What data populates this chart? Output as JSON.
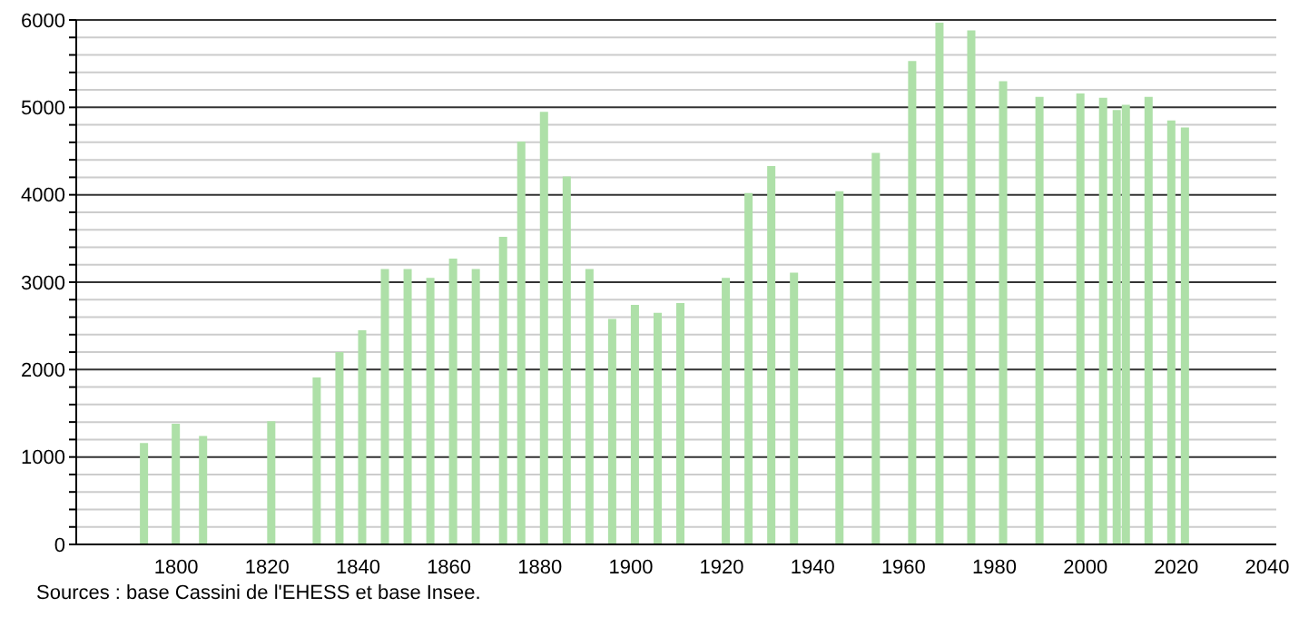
{
  "chart_data": {
    "type": "bar",
    "x": [
      1793,
      1800,
      1806,
      1821,
      1831,
      1836,
      1841,
      1846,
      1851,
      1856,
      1861,
      1866,
      1872,
      1876,
      1881,
      1886,
      1891,
      1896,
      1901,
      1906,
      1911,
      1921,
      1926,
      1931,
      1936,
      1946,
      1954,
      1962,
      1968,
      1975,
      1982,
      1990,
      1999,
      2004,
      2007,
      2009,
      2014,
      2019,
      2022
    ],
    "values": [
      1160,
      1380,
      1240,
      1410,
      1910,
      2200,
      2450,
      3150,
      3150,
      3050,
      3270,
      3150,
      3520,
      4610,
      4950,
      4210,
      3150,
      2580,
      2740,
      2650,
      2760,
      3050,
      4020,
      4330,
      3110,
      4040,
      4480,
      5530,
      5970,
      5880,
      5300,
      5120,
      5160,
      5110,
      4970,
      5030,
      5120,
      4850,
      4770
    ],
    "color": "#aee0a8",
    "xlim": [
      1778,
      2042
    ],
    "xticks": [
      1800,
      1820,
      1840,
      1860,
      1880,
      1900,
      1920,
      1940,
      1960,
      1980,
      2000,
      2020,
      2040
    ],
    "ylim": [
      0,
      6000
    ],
    "yticks": [
      0,
      {
        "value": 200,
        "label": null
      },
      {
        "value": 400,
        "label": null
      },
      {
        "value": 600,
        "label": null
      },
      {
        "value": 800,
        "label": null
      },
      1000,
      {
        "value": 1200,
        "label": null
      },
      {
        "value": 1400,
        "label": null
      },
      {
        "value": 1600,
        "label": null
      },
      {
        "value": 1800,
        "label": null
      },
      2000,
      {
        "value": 2200,
        "label": null
      },
      {
        "value": 2400,
        "label": null
      },
      {
        "value": 2600,
        "label": null
      },
      {
        "value": 2800,
        "label": null
      },
      3000,
      {
        "value": 3200,
        "label": null
      },
      {
        "value": 3400,
        "label": null
      },
      {
        "value": 3600,
        "label": null
      },
      {
        "value": 3800,
        "label": null
      },
      4000,
      {
        "value": 4200,
        "label": null
      },
      {
        "value": 4400,
        "label": null
      },
      {
        "value": 4600,
        "label": null
      },
      {
        "value": 4800,
        "label": null
      },
      5000,
      {
        "value": 5200,
        "label": null
      },
      {
        "value": 5400,
        "label": null
      },
      {
        "value": 5600,
        "label": null
      },
      {
        "value": 5800,
        "label": null
      },
      6000
    ],
    "grid": "y",
    "annotations": [
      "Sources : base Cassini de l'EHESS et base Insee."
    ]
  }
}
